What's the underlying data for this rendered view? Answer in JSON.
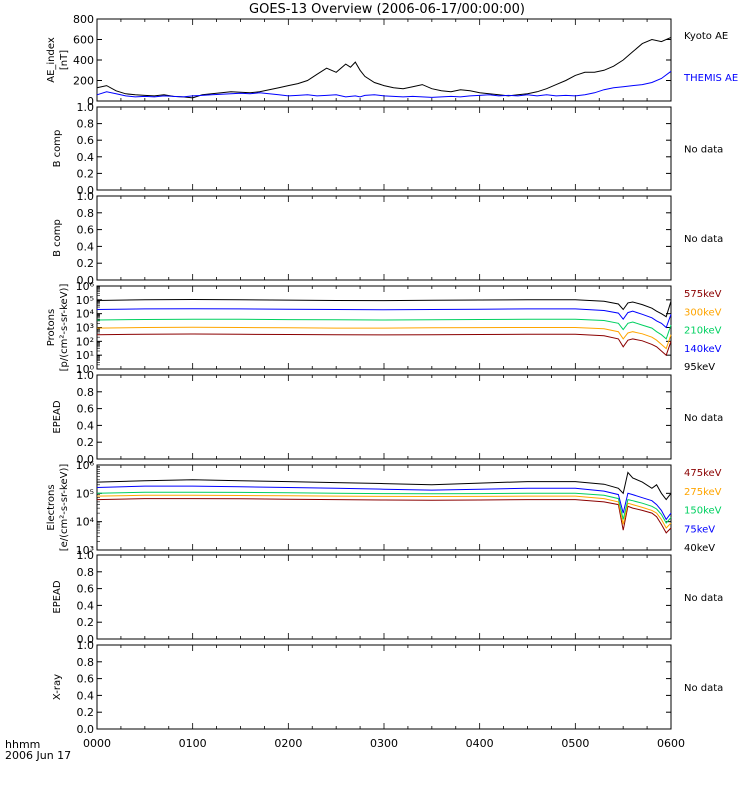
{
  "title": "GOES-13 Overview (2006-06-17/00:00:00)",
  "x_axis": {
    "corner_label_1": "hhmm",
    "corner_label_2": "2006 Jun 17",
    "ticks": [
      "0000",
      "0100",
      "0200",
      "0300",
      "0400",
      "0500",
      "0600"
    ]
  },
  "colors": {
    "black": "#000000",
    "blue": "#0000ff",
    "green": "#00d060",
    "orange": "#ffa500",
    "darkred": "#8b0000"
  },
  "chart_data": [
    {
      "type": "line",
      "id": "ae",
      "ylabel": [
        "AE_index",
        "[nT]"
      ],
      "yscale": "linear",
      "ylim": [
        0,
        800
      ],
      "yticks": [
        "0",
        "200",
        "400",
        "600",
        "800"
      ],
      "x": [
        0.0,
        0.1,
        0.2,
        0.3,
        0.4,
        0.5,
        0.6,
        0.7,
        0.8,
        0.9,
        1.0,
        1.1,
        1.2,
        1.3,
        1.4,
        1.5,
        1.6,
        1.7,
        1.8,
        1.9,
        2.0,
        2.1,
        2.2,
        2.3,
        2.4,
        2.5,
        2.6,
        2.65,
        2.7,
        2.75,
        2.8,
        2.9,
        3.0,
        3.1,
        3.2,
        3.3,
        3.4,
        3.5,
        3.6,
        3.7,
        3.8,
        3.9,
        4.0,
        4.1,
        4.2,
        4.3,
        4.4,
        4.5,
        4.6,
        4.7,
        4.8,
        4.9,
        5.0,
        5.1,
        5.2,
        5.3,
        5.4,
        5.5,
        5.6,
        5.7,
        5.8,
        5.9,
        6.0
      ],
      "series": [
        {
          "name": "Kyoto AE",
          "color": "black",
          "values": [
            130,
            150,
            100,
            70,
            60,
            55,
            50,
            60,
            45,
            40,
            30,
            60,
            70,
            80,
            90,
            85,
            80,
            90,
            110,
            130,
            150,
            170,
            200,
            260,
            320,
            280,
            360,
            330,
            380,
            300,
            240,
            180,
            150,
            130,
            120,
            140,
            160,
            120,
            100,
            90,
            110,
            100,
            80,
            70,
            60,
            50,
            60,
            70,
            90,
            120,
            160,
            200,
            250,
            280,
            280,
            300,
            340,
            400,
            480,
            560,
            600,
            580,
            620
          ]
        },
        {
          "name": "THEMIS AE",
          "color": "blue",
          "values": [
            60,
            90,
            70,
            50,
            40,
            45,
            40,
            50,
            45,
            40,
            50,
            55,
            60,
            65,
            70,
            75,
            70,
            80,
            70,
            60,
            50,
            55,
            60,
            50,
            55,
            60,
            40,
            45,
            50,
            40,
            55,
            60,
            50,
            45,
            40,
            45,
            40,
            35,
            40,
            45,
            40,
            50,
            55,
            60,
            50,
            55,
            50,
            60,
            50,
            60,
            50,
            55,
            50,
            60,
            80,
            110,
            130,
            140,
            150,
            160,
            180,
            220,
            290
          ]
        }
      ]
    },
    {
      "type": "line",
      "id": "bcomp1",
      "ylabel": [
        "B comp"
      ],
      "yscale": "linear",
      "ylim": [
        0,
        1
      ],
      "yticks": [
        "0.0",
        "0.2",
        "0.4",
        "0.6",
        "0.8",
        "1.0"
      ],
      "note": "No data"
    },
    {
      "type": "line",
      "id": "bcomp2",
      "ylabel": [
        "B comp"
      ],
      "yscale": "linear",
      "ylim": [
        0,
        1
      ],
      "yticks": [
        "0.0",
        "0.2",
        "0.4",
        "0.6",
        "0.8",
        "1.0"
      ],
      "note": "No data"
    },
    {
      "type": "line",
      "id": "protons",
      "ylabel": [
        "Protons",
        "[p/(cm²-s-sr-keV)]"
      ],
      "yscale": "log",
      "ylim": [
        1,
        1000000
      ],
      "yticks": [
        "10⁰",
        "10¹",
        "10²",
        "10³",
        "10⁴",
        "10⁵",
        "10⁶"
      ],
      "x": [
        0.0,
        0.5,
        1.0,
        1.5,
        2.0,
        2.5,
        3.0,
        3.5,
        4.0,
        4.5,
        5.0,
        5.3,
        5.45,
        5.5,
        5.55,
        5.6,
        5.7,
        5.8,
        5.85,
        5.9,
        5.95,
        6.0
      ],
      "series": [
        {
          "name": "575keV",
          "color": "darkred",
          "values": [
            300,
            330,
            340,
            320,
            310,
            300,
            290,
            300,
            310,
            320,
            330,
            250,
            150,
            40,
            120,
            150,
            110,
            60,
            40,
            20,
            10,
            100
          ]
        },
        {
          "name": "300keV",
          "color": "orange",
          "values": [
            900,
            1000,
            1050,
            1000,
            950,
            900,
            900,
            950,
            980,
            1000,
            1000,
            800,
            500,
            150,
            400,
            500,
            350,
            200,
            120,
            60,
            30,
            300
          ]
        },
        {
          "name": "210keV",
          "color": "green",
          "values": [
            3500,
            3800,
            4000,
            3900,
            3700,
            3600,
            3500,
            3600,
            3800,
            3900,
            4000,
            3200,
            2000,
            700,
            2000,
            2500,
            1500,
            900,
            500,
            300,
            150,
            1500
          ]
        },
        {
          "name": "140keV",
          "color": "blue",
          "values": [
            20000,
            22000,
            23000,
            22000,
            21000,
            20000,
            19000,
            20000,
            21000,
            22000,
            22000,
            17000,
            11000,
            4000,
            12000,
            15000,
            9000,
            5000,
            3000,
            2000,
            1000,
            9000
          ]
        },
        {
          "name": "95keV",
          "color": "black",
          "values": [
            90000,
            100000,
            105000,
            100000,
            95000,
            90000,
            88000,
            92000,
            98000,
            100000,
            100000,
            80000,
            50000,
            20000,
            60000,
            70000,
            45000,
            25000,
            15000,
            10000,
            6000,
            80000
          ]
        }
      ]
    },
    {
      "type": "line",
      "id": "epead1",
      "ylabel": [
        "EPEAD"
      ],
      "yscale": "linear",
      "ylim": [
        0,
        1
      ],
      "yticks": [
        "0.0",
        "0.2",
        "0.4",
        "0.6",
        "0.8",
        "1.0"
      ],
      "note": "No data"
    },
    {
      "type": "line",
      "id": "electrons",
      "ylabel": [
        "Electrons",
        "[e/(cm²-s-sr-keV)]"
      ],
      "yscale": "log",
      "ylim": [
        1000,
        1000000
      ],
      "yticks": [
        "10³",
        "10⁴",
        "10⁵",
        "10⁶"
      ],
      "x": [
        0.0,
        0.5,
        1.0,
        1.5,
        2.0,
        2.5,
        3.0,
        3.5,
        4.0,
        4.5,
        5.0,
        5.3,
        5.45,
        5.5,
        5.55,
        5.6,
        5.7,
        5.8,
        5.85,
        5.9,
        5.95,
        6.0
      ],
      "series": [
        {
          "name": "475keV",
          "color": "darkred",
          "values": [
            60000,
            65000,
            65000,
            64000,
            62000,
            60000,
            58000,
            57000,
            58000,
            60000,
            60000,
            50000,
            40000,
            5000,
            35000,
            30000,
            25000,
            20000,
            15000,
            8000,
            4000,
            6000
          ]
        },
        {
          "name": "275keV",
          "color": "orange",
          "values": [
            80000,
            85000,
            85000,
            84000,
            82000,
            80000,
            78000,
            77000,
            78000,
            80000,
            80000,
            65000,
            50000,
            8000,
            45000,
            40000,
            32000,
            25000,
            20000,
            12000,
            6000,
            9000
          ]
        },
        {
          "name": "150keV",
          "color": "green",
          "values": [
            100000,
            110000,
            110000,
            108000,
            105000,
            100000,
            98000,
            96000,
            98000,
            100000,
            100000,
            85000,
            65000,
            12000,
            60000,
            55000,
            45000,
            35000,
            28000,
            18000,
            9000,
            14000
          ]
        },
        {
          "name": "75keV",
          "color": "blue",
          "values": [
            160000,
            180000,
            180000,
            170000,
            160000,
            150000,
            140000,
            130000,
            140000,
            150000,
            150000,
            120000,
            90000,
            20000,
            100000,
            90000,
            70000,
            55000,
            40000,
            25000,
            12000,
            20000
          ]
        },
        {
          "name": "40keV",
          "color": "black",
          "values": [
            250000,
            280000,
            300000,
            280000,
            260000,
            240000,
            220000,
            200000,
            230000,
            260000,
            260000,
            210000,
            150000,
            100000,
            550000,
            350000,
            250000,
            150000,
            200000,
            100000,
            60000,
            100000
          ]
        }
      ]
    },
    {
      "type": "line",
      "id": "epead2",
      "ylabel": [
        "EPEAD"
      ],
      "yscale": "linear",
      "ylim": [
        0,
        1
      ],
      "yticks": [
        "0.0",
        "0.2",
        "0.4",
        "0.6",
        "0.8",
        "1.0"
      ],
      "note": "No data"
    },
    {
      "type": "line",
      "id": "xray",
      "ylabel": [
        "X-ray"
      ],
      "yscale": "linear",
      "ylim": [
        0,
        1
      ],
      "yticks": [
        "0.0",
        "0.2",
        "0.4",
        "0.6",
        "0.8",
        "1.0"
      ],
      "note": "No data"
    }
  ]
}
